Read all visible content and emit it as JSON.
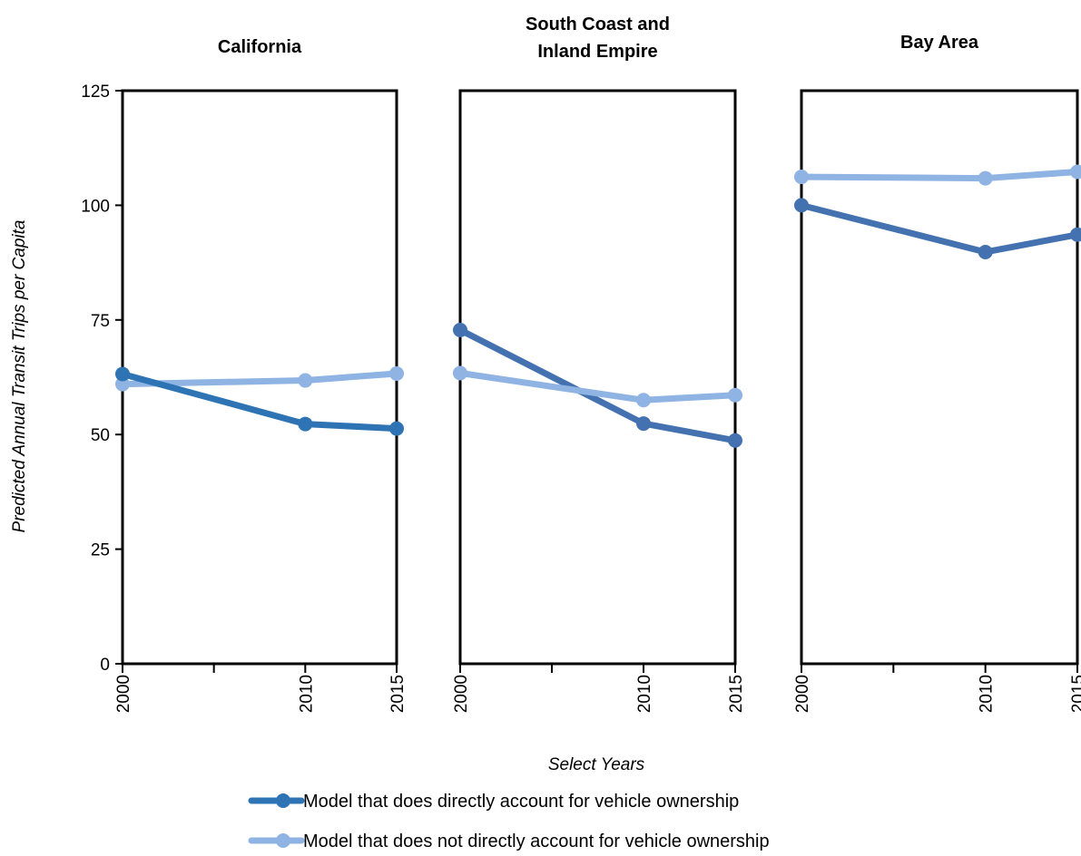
{
  "chart_data": {
    "type": "line",
    "ylabel": "Predicted Annual Transit Trips per Capita",
    "xlabel": "Select Years",
    "ylim": [
      0,
      125
    ],
    "yticks": [
      0,
      25,
      50,
      75,
      100,
      125
    ],
    "xlim": [
      2000,
      2015
    ],
    "x": [
      2000,
      2010,
      2015
    ],
    "x_tick_labels": [
      "2000",
      "2010",
      "2015"
    ],
    "grid": false,
    "legend_position": "bottom",
    "series_names": [
      "Model that does directly account for vehicle ownership",
      "Model that does not directly account for vehicle ownership"
    ],
    "series_colors": [
      "#2e74b5",
      "#8fb4e3"
    ],
    "panels": [
      {
        "title_lines": [
          "California"
        ],
        "series": [
          {
            "name": "Model that does directly account for vehicle ownership",
            "color": "#2e74b5",
            "values": [
              63.2,
              52.3,
              51.3
            ]
          },
          {
            "name": "Model that does not directly account for vehicle ownership",
            "color": "#8fb4e3",
            "values": [
              61.0,
              61.8,
              63.3
            ]
          }
        ]
      },
      {
        "title_lines": [
          "South Coast and",
          "Inland Empire"
        ],
        "series": [
          {
            "name": "Model that does directly account for vehicle ownership",
            "color": "#4472b0",
            "values": [
              72.8,
              52.4,
              48.7
            ]
          },
          {
            "name": "Model that does not directly account for vehicle ownership",
            "color": "#8fb4e3",
            "values": [
              63.4,
              57.5,
              58.6
            ]
          }
        ]
      },
      {
        "title_lines": [
          "Bay Area"
        ],
        "series": [
          {
            "name": "Model that does directly account for vehicle ownership",
            "color": "#4472b0",
            "values": [
              100.0,
              89.8,
              93.6
            ]
          },
          {
            "name": "Model that does not directly account for vehicle ownership",
            "color": "#8fb4e3",
            "values": [
              106.2,
              105.9,
              107.3
            ]
          }
        ]
      }
    ]
  }
}
